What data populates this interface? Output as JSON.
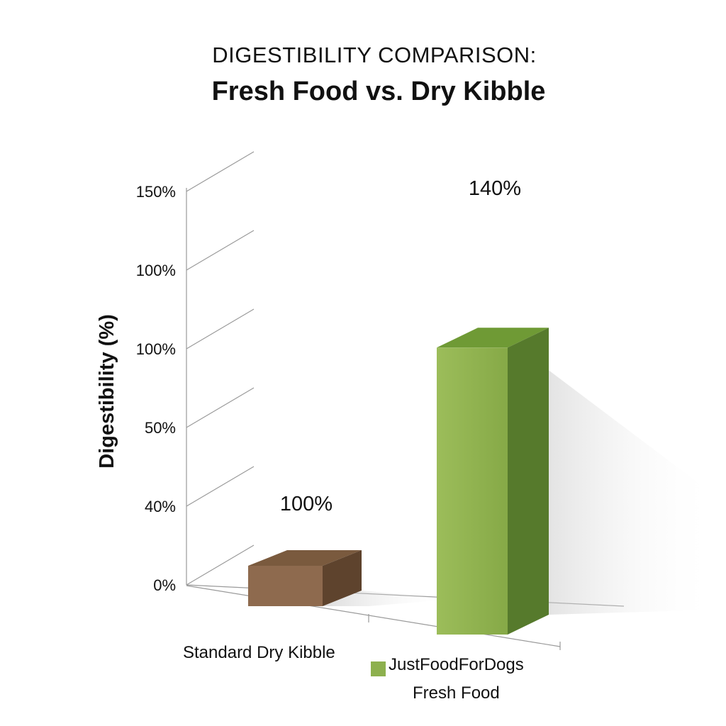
{
  "chart_data": {
    "type": "bar",
    "title": "DIGESTIBILITY COMPARISON:",
    "subtitle": "Fresh Food vs. Dry Kibble",
    "ylabel": "Digestibility (%)",
    "xlabel": "",
    "y_tick_labels": [
      "0%",
      "40%",
      "50%",
      "100%",
      "100%",
      "150%"
    ],
    "categories": [
      "Standard Dry Kibble",
      "JustFoodForDogs Fresh Food"
    ],
    "category_b_lines": [
      "JustFoodForDogs",
      "Fresh Food"
    ],
    "values": [
      100,
      140
    ],
    "data_labels": [
      "100%",
      "140%"
    ],
    "grid": true,
    "legend": "bottom",
    "colors": {
      "kibble_front": "#8e6a4e",
      "kibble_top": "#7a5a3e",
      "kibble_side": "#5e432d",
      "fresh_front": "#8db04e",
      "fresh_top": "#6f9a35",
      "fresh_side": "#567a2c"
    }
  }
}
